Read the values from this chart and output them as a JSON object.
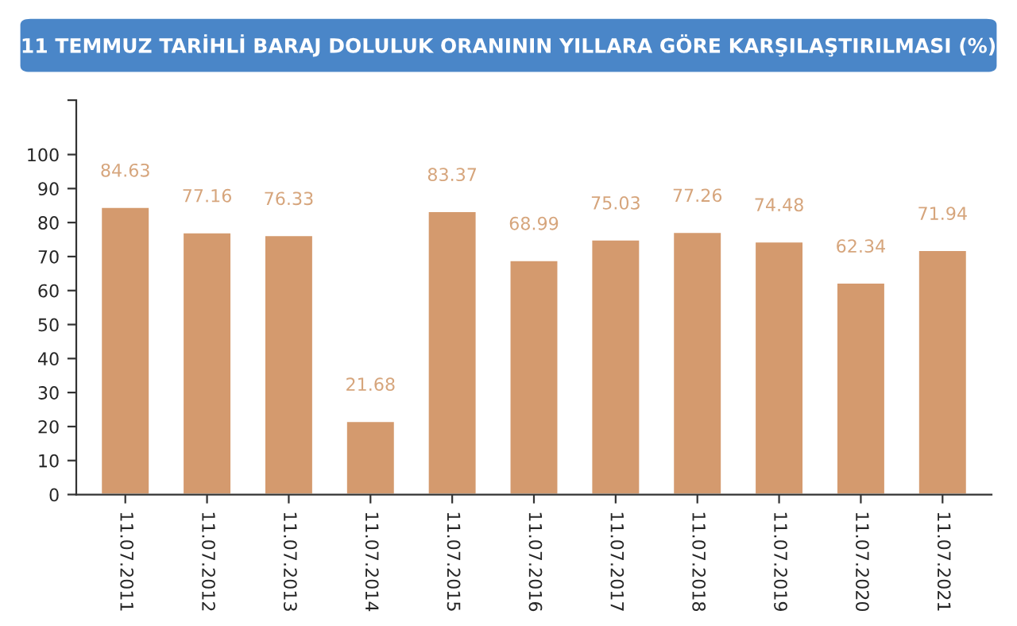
{
  "chart_data": {
    "type": "bar",
    "title": "11 TEMMUZ TARİHLİ BARAJ DOLULUK ORANININ YILLARA GÖRE KARŞILAŞTIRILMASI (%)",
    "categories": [
      "11.07.2011",
      "11.07.2012",
      "11.07.2013",
      "11.07.2014",
      "11.07.2015",
      "11.07.2016",
      "11.07.2017",
      "11.07.2018",
      "11.07.2019",
      "11.07.2020",
      "11.07.2021"
    ],
    "values": [
      84.63,
      77.16,
      76.33,
      21.68,
      83.37,
      68.99,
      75.03,
      77.26,
      74.48,
      62.34,
      71.94
    ],
    "color": "#d49a6e",
    "data_labels": true,
    "ylim": [
      0,
      116
    ],
    "yticks": [
      0,
      10,
      20,
      30,
      40,
      50,
      60,
      70,
      80,
      90,
      100,
      {
        "value": 116,
        "label": null
      }
    ],
    "grid": false,
    "legend": false
  }
}
